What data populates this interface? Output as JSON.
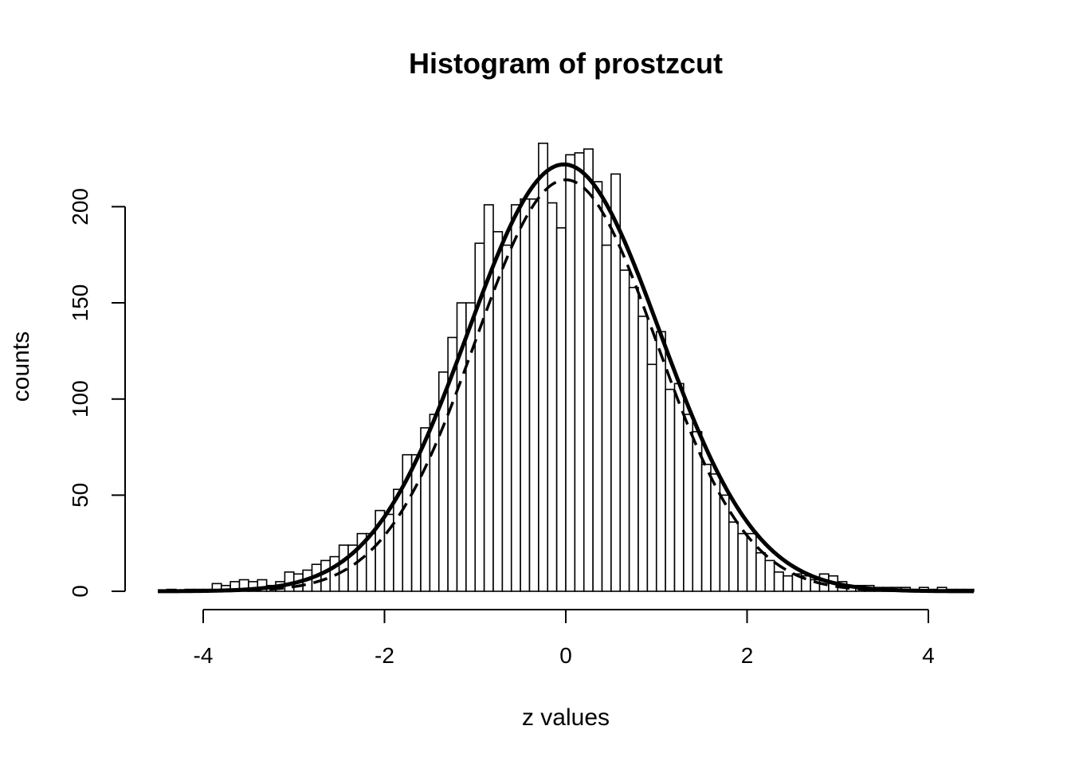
{
  "chart_data": {
    "type": "bar",
    "title": "Histogram of prostzcut",
    "xlabel": "z values",
    "ylabel": "counts",
    "xlim": [
      -4.5,
      4.5
    ],
    "ylim": [
      0,
      235
    ],
    "x_ticks": [
      -4,
      -2,
      0,
      2,
      4
    ],
    "x_tick_labels": [
      "-4",
      "-2",
      "0",
      "2",
      "4"
    ],
    "y_ticks": [
      0,
      50,
      100,
      150,
      200
    ],
    "y_tick_labels": [
      "0",
      "50",
      "100",
      "150",
      "200"
    ],
    "bin_width": 0.1,
    "bin_starts": [
      -4.4,
      -4.3,
      -4.2,
      -4.1,
      -4.0,
      -3.9,
      -3.8,
      -3.7,
      -3.6,
      -3.5,
      -3.4,
      -3.3,
      -3.2,
      -3.1,
      -3.0,
      -2.9,
      -2.8,
      -2.7,
      -2.6,
      -2.5,
      -2.4,
      -2.3,
      -2.2,
      -2.1,
      -2.0,
      -1.9,
      -1.8,
      -1.7,
      -1.6,
      -1.5,
      -1.4,
      -1.3,
      -1.2,
      -1.1,
      -1.0,
      -0.9,
      -0.8,
      -0.7,
      -0.6,
      -0.5,
      -0.4,
      -0.3,
      -0.2,
      -0.1,
      0.0,
      0.1,
      0.2,
      0.3,
      0.4,
      0.5,
      0.6,
      0.7,
      0.8,
      0.9,
      1.0,
      1.1,
      1.2,
      1.3,
      1.4,
      1.5,
      1.6,
      1.7,
      1.8,
      1.9,
      2.0,
      2.1,
      2.2,
      2.3,
      2.4,
      2.5,
      2.6,
      2.7,
      2.8,
      2.9,
      3.0,
      3.1,
      3.2,
      3.3,
      3.4,
      3.5,
      3.6,
      3.7,
      3.8,
      3.9,
      4.0,
      4.1,
      4.2,
      4.3,
      4.4
    ],
    "counts": [
      1,
      0,
      1,
      1,
      1,
      4,
      3,
      5,
      6,
      5,
      6,
      3,
      5,
      10,
      9,
      11,
      14,
      16,
      18,
      24,
      24,
      30,
      30,
      42,
      40,
      53,
      71,
      71,
      85,
      92,
      114,
      132,
      150,
      150,
      181,
      201,
      187,
      180,
      201,
      204,
      204,
      233,
      202,
      189,
      227,
      228,
      230,
      213,
      180,
      217,
      167,
      158,
      143,
      118,
      135,
      105,
      108,
      92,
      83,
      66,
      61,
      50,
      36,
      30,
      30,
      20,
      16,
      10,
      8,
      9,
      8,
      6,
      9,
      8,
      5,
      3,
      3,
      3,
      2,
      2,
      2,
      2,
      1,
      2,
      1,
      2,
      1,
      1,
      1
    ],
    "curves": [
      {
        "style": "solid",
        "mean": -0.02,
        "sd": 1.06,
        "peak": 222
      },
      {
        "style": "dashed",
        "mean": 0.0,
        "sd": 1.0,
        "peak": 214
      }
    ],
    "grid": false,
    "legend": "none"
  }
}
